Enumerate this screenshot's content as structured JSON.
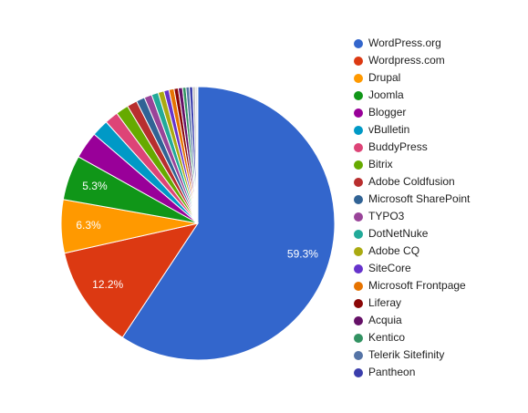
{
  "chart_data": {
    "type": "pie",
    "categories": [
      "WordPress.org",
      "Wordpress.com",
      "Drupal",
      "Joomla",
      "Blogger",
      "vBulletin",
      "BuddyPress",
      "Bitrix",
      "Adobe Coldfusion",
      "Microsoft SharePoint",
      "TYPO3",
      "DotNetNuke",
      "Adobe CQ",
      "SiteCore",
      "Microsoft Frontpage",
      "Liferay",
      "Acquia",
      "Kentico",
      "Telerik Sitefinity",
      "Pantheon",
      null,
      null,
      null
    ],
    "values": [
      59.3,
      12.2,
      6.3,
      5.3,
      3.2,
      2.0,
      1.6,
      1.5,
      1.2,
      1.0,
      0.9,
      0.8,
      0.7,
      0.6,
      0.6,
      0.5,
      0.5,
      0.4,
      0.4,
      0.4,
      0.3,
      0.2,
      0.1
    ],
    "value_labels": [
      "59.3%",
      "12.2%",
      "6.3%",
      "5.3%",
      null,
      null,
      null,
      null,
      null,
      null,
      null,
      null,
      null,
      null,
      null,
      null,
      null,
      null,
      null,
      null,
      null,
      null,
      null
    ],
    "colors": [
      "#3366cc",
      "#dc3912",
      "#ff9900",
      "#109618",
      "#990099",
      "#0099c6",
      "#dd4477",
      "#66aa00",
      "#b82e2e",
      "#316395",
      "#994499",
      "#22aa99",
      "#aaaa11",
      "#6633cc",
      "#e67300",
      "#8b0707",
      "#651067",
      "#329262",
      "#5574a6",
      "#3b3eac",
      "#bbbbbb",
      "#cccccc",
      "#dddddd"
    ],
    "legend": "right"
  }
}
